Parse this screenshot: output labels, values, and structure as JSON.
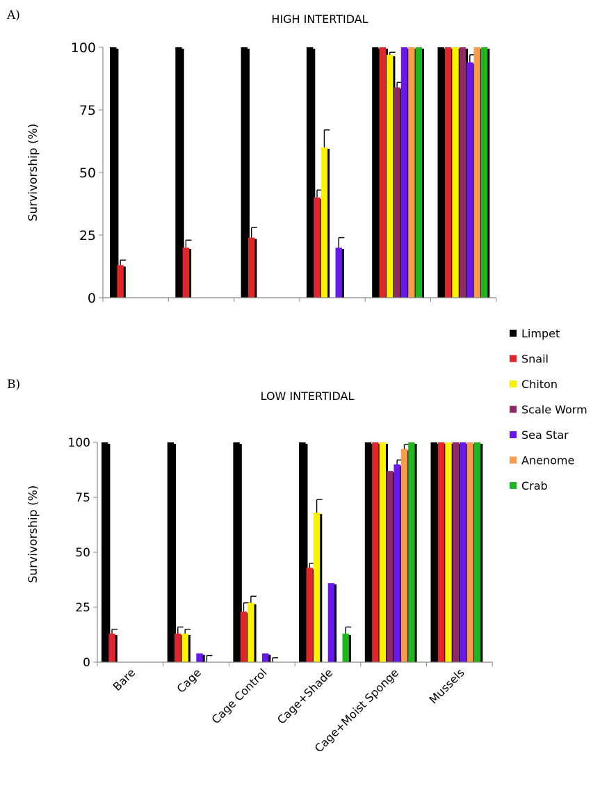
{
  "colors": {
    "Limpet": "#000000",
    "Snail": "#e0262b",
    "Chiton": "#fbf200",
    "Scale Worm": "#8f2a66",
    "Sea Star": "#6a17ee",
    "Anenome": "#fa9b4c",
    "Crab": "#1fb51f"
  },
  "legend": [
    "Limpet",
    "Snail",
    "Chiton",
    "Scale Worm",
    "Sea Star",
    "Anenome",
    "Crab"
  ],
  "chart_data": [
    {
      "type": "bar",
      "panel_label": "A)",
      "title": "HIGH INTERTIDAL",
      "xlabel": "",
      "ylabel": "Survivorship (%)",
      "ylim": [
        0,
        100
      ],
      "yticks": [
        0,
        25,
        50,
        75,
        100
      ],
      "categories": [
        "Bare",
        "Cage",
        "Cage Control",
        "Cage+Shade",
        "Cage+Moist Sponge",
        "Mussels"
      ],
      "show_category_labels": false,
      "legend_position": "right",
      "series": [
        {
          "name": "Limpet",
          "values": [
            100,
            100,
            100,
            100,
            100,
            100
          ],
          "errors": [
            0,
            0,
            0,
            0,
            0,
            0
          ]
        },
        {
          "name": "Snail",
          "values": [
            13,
            20,
            24,
            40,
            100,
            100
          ],
          "errors": [
            2,
            3,
            4,
            3,
            0,
            0
          ]
        },
        {
          "name": "Chiton",
          "values": [
            0,
            0,
            0,
            60,
            97,
            100
          ],
          "errors": [
            0,
            0,
            0,
            7,
            1,
            0
          ]
        },
        {
          "name": "Scale Worm",
          "values": [
            0,
            0,
            0,
            0,
            84,
            100
          ],
          "errors": [
            0,
            0,
            0,
            0,
            2,
            0
          ]
        },
        {
          "name": "Sea Star",
          "values": [
            0,
            0,
            0,
            20,
            100,
            94
          ],
          "errors": [
            0,
            0,
            0,
            4,
            0,
            3
          ]
        },
        {
          "name": "Anenome",
          "values": [
            0,
            0,
            0,
            0,
            100,
            100
          ],
          "errors": [
            0,
            0,
            0,
            0,
            0,
            0
          ]
        },
        {
          "name": "Crab",
          "values": [
            0,
            0,
            0,
            0,
            100,
            100
          ],
          "errors": [
            0,
            0,
            0,
            0,
            0,
            0
          ]
        }
      ]
    },
    {
      "type": "bar",
      "panel_label": "B)",
      "title": "LOW INTERTIDAL",
      "xlabel": "",
      "ylabel": "Survivorship (%)",
      "ylim": [
        0,
        100
      ],
      "yticks": [
        0,
        25,
        50,
        75,
        100
      ],
      "categories": [
        "Bare",
        "Cage",
        "Cage Control",
        "Cage+Shade",
        "Cage+Moist Sponge",
        "Mussels"
      ],
      "show_category_labels": true,
      "legend_position": "right",
      "series": [
        {
          "name": "Limpet",
          "values": [
            100,
            100,
            100,
            100,
            100,
            100
          ],
          "errors": [
            0,
            0,
            0,
            0,
            0,
            0
          ]
        },
        {
          "name": "Snail",
          "values": [
            13,
            13,
            23,
            43,
            100,
            100
          ],
          "errors": [
            2,
            3,
            4,
            2,
            0,
            0
          ]
        },
        {
          "name": "Chiton",
          "values": [
            0,
            13,
            27,
            68,
            100,
            100
          ],
          "errors": [
            0,
            2,
            3,
            6,
            0,
            0
          ]
        },
        {
          "name": "Scale Worm",
          "values": [
            0,
            0,
            0,
            0,
            87,
            100
          ],
          "errors": [
            0,
            0,
            0,
            0,
            0,
            0
          ]
        },
        {
          "name": "Sea Star",
          "values": [
            0,
            4,
            4,
            36,
            90,
            100
          ],
          "errors": [
            0,
            0,
            0,
            0,
            2,
            0
          ]
        },
        {
          "name": "Anenome",
          "values": [
            0,
            0,
            0,
            0,
            97,
            100
          ],
          "errors": [
            0,
            3,
            2,
            0,
            2,
            0
          ]
        },
        {
          "name": "Crab",
          "values": [
            0,
            0,
            0,
            13,
            100,
            100
          ],
          "errors": [
            0,
            0,
            0,
            3,
            0,
            0
          ]
        }
      ]
    }
  ]
}
